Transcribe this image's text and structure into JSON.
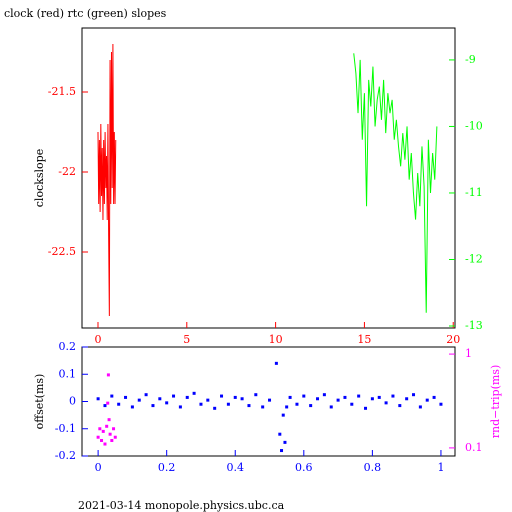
{
  "chart_data": [
    {
      "type": "line",
      "title": "clock (red) rtc (green) slopes",
      "y_label": "clockslope",
      "xlim": [
        -0.9,
        20.1
      ],
      "xticks": [
        0,
        5,
        10,
        15,
        20
      ],
      "x_tick_color": "#ff0000",
      "ylim": [
        -22.975,
        -21.1
      ],
      "yticks": [
        -21.5,
        -22,
        -22.5
      ],
      "y_tick_color": "#ff0000",
      "y2lim": [
        -13.03,
        -8.52
      ],
      "y2ticks": [
        -9,
        -10,
        -11,
        -12,
        -13
      ],
      "y2_tick_color": "#00ff00",
      "series": [
        {
          "color": "#ff0000",
          "axis": "y",
          "x": [
            0,
            0.04,
            0.08,
            0.12,
            0.16,
            0.2,
            0.24,
            0.28,
            0.32,
            0.36,
            0.4,
            0.44,
            0.48,
            0.52,
            0.56,
            0.6,
            0.64,
            0.68,
            0.72,
            0.76,
            0.8,
            0.84,
            0.88,
            0.92,
            0.96,
            1.0
          ],
          "values": [
            -21.75,
            -22.2,
            -21.8,
            -22.25,
            -21.7,
            -22.15,
            -21.85,
            -22.3,
            -21.8,
            -22.2,
            -21.75,
            -22.1,
            -21.9,
            -22.3,
            -21.7,
            -22.4,
            -22.9,
            -21.3,
            -22.2,
            -21.25,
            -22.1,
            -21.2,
            -22.2,
            -21.75,
            -22.2,
            -21.8
          ]
        },
        {
          "color": "#00ff00",
          "axis": "y2",
          "x": [
            14.4,
            14.52,
            14.64,
            14.76,
            14.88,
            15.0,
            15.12,
            15.24,
            15.36,
            15.48,
            15.6,
            15.72,
            15.84,
            15.96,
            16.08,
            16.2,
            16.32,
            16.44,
            16.56,
            16.68,
            16.8,
            16.92,
            17.04,
            17.16,
            17.28,
            17.4,
            17.52,
            17.64,
            17.76,
            17.88,
            18.0,
            18.12,
            18.24,
            18.36,
            18.48,
            18.6,
            18.72,
            18.84,
            18.96,
            19.08
          ],
          "values": [
            -8.9,
            -9.2,
            -9.8,
            -9.0,
            -10.2,
            -9.5,
            -11.2,
            -9.3,
            -9.7,
            -9.1,
            -10.0,
            -9.6,
            -9.4,
            -9.9,
            -9.3,
            -10.1,
            -9.5,
            -9.8,
            -9.6,
            -10.2,
            -9.9,
            -10.3,
            -10.6,
            -10.1,
            -10.5,
            -10.0,
            -10.8,
            -10.4,
            -11.0,
            -11.4,
            -10.7,
            -11.2,
            -10.3,
            -10.9,
            -12.8,
            -10.2,
            -11.0,
            -10.4,
            -10.8,
            -10.0
          ]
        }
      ]
    },
    {
      "type": "scatter",
      "y_label": "offset(ms)",
      "y2_label": "rnd−trip(ms)",
      "xlim": [
        -0.047,
        1.041
      ],
      "xticks": [
        0,
        0.2,
        0.4,
        0.6,
        0.8,
        1
      ],
      "x_tick_color": "#0000ff",
      "ylim": [
        -0.2,
        0.2
      ],
      "yticks": [
        0.2,
        0.1,
        0,
        -0.1,
        -0.2
      ],
      "y_tick_color": "#0000ff",
      "y2lim": [
        0.082,
        1.19
      ],
      "y2ticks": [
        1,
        0.1
      ],
      "y2_tick_color": "#ff00ff",
      "y2log": true,
      "series": [
        {
          "color": "#0000ff",
          "axis": "y",
          "x": [
            0,
            0.02,
            0.04,
            0.06,
            0.08,
            0.1,
            0.12,
            0.14,
            0.16,
            0.18,
            0.2,
            0.22,
            0.24,
            0.26,
            0.28,
            0.3,
            0.32,
            0.34,
            0.36,
            0.38,
            0.4,
            0.42,
            0.44,
            0.46,
            0.48,
            0.5,
            0.52,
            0.53,
            0.535,
            0.54,
            0.545,
            0.55,
            0.56,
            0.58,
            0.6,
            0.62,
            0.64,
            0.66,
            0.68,
            0.7,
            0.72,
            0.74,
            0.76,
            0.78,
            0.8,
            0.82,
            0.84,
            0.86,
            0.88,
            0.9,
            0.92,
            0.94,
            0.96,
            0.98,
            1.0
          ],
          "values": [
            0.01,
            -0.015,
            0.02,
            -0.01,
            0.015,
            -0.02,
            0.005,
            0.025,
            -0.015,
            0.01,
            -0.005,
            0.02,
            -0.02,
            0.015,
            0.03,
            -0.01,
            0.005,
            -0.025,
            0.02,
            -0.01,
            0.015,
            0.01,
            -0.015,
            0.025,
            -0.02,
            0.005,
            0.14,
            -0.12,
            -0.18,
            -0.05,
            -0.15,
            -0.02,
            0.015,
            -0.01,
            0.02,
            -0.015,
            0.01,
            0.025,
            -0.02,
            0.005,
            0.015,
            -0.01,
            0.02,
            -0.025,
            0.01,
            0.015,
            -0.005,
            0.02,
            -0.015,
            0.01,
            0.025,
            -0.02,
            0.005,
            0.015,
            -0.01
          ]
        },
        {
          "color": "#ff00ff",
          "axis": "y2",
          "x": [
            0,
            0.005,
            0.01,
            0.015,
            0.02,
            0.025,
            0.028,
            0.03,
            0.032,
            0.035,
            0.04,
            0.045,
            0.05
          ],
          "values": [
            0.13,
            0.16,
            0.12,
            0.15,
            0.11,
            0.17,
            0.3,
            0.6,
            0.2,
            0.14,
            0.12,
            0.16,
            0.13
          ]
        }
      ]
    }
  ],
  "footer": "2021-03-14 monopole.physics.ubc.ca"
}
